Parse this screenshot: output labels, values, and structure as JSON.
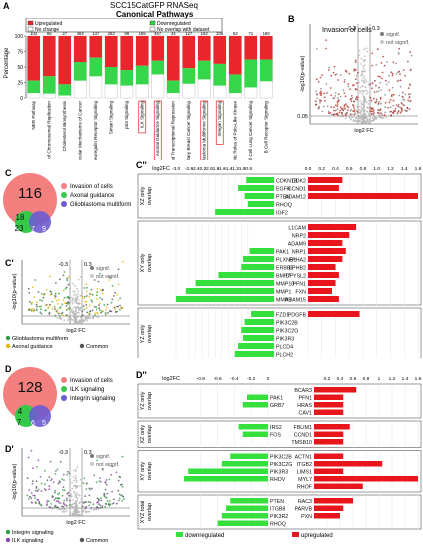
{
  "panel_letters": {
    "A": "A",
    "B": "B",
    "C": "C",
    "C1": "C'",
    "C2": "C''",
    "D": "D",
    "D1": "D'",
    "D2": "D''"
  },
  "panelA": {
    "title_line1": "SCC15CatGFP RNASeq",
    "title_line2": "Canonical Pathways",
    "ylabel": "Percentage",
    "legend": [
      "Upregulated",
      "Downregulated",
      "No change",
      "No overlap with dataset"
    ],
    "colors": {
      "up": "#e8262b",
      "down": "#35d64a",
      "nochange": "#ffffff",
      "nooverlap": "#ffffff"
    }
  },
  "panelB": {
    "title": "Invasion of cells",
    "ylabel": "-log10(p-value)",
    "xlabel": "log2 FC",
    "neg_thr": "-0.3",
    "pos_thr": "0.3",
    "pthr": "0.05",
    "legend_sig": "signif.",
    "legend_notsig": "not signif."
  },
  "panelC": {
    "big": "116",
    "n2": "18",
    "n3": "23",
    "n4": "7",
    "n5": "9",
    "legend": [
      "Invasion of cells",
      "Axonal guidance",
      "Glioblastoma multiform"
    ]
  },
  "panelC1": {
    "ylabel": "-log10(p-value)",
    "xlabel": "log2 FC",
    "neg_thr": "-0.3",
    "pos_thr": "0.3",
    "legend_sig": "signif.",
    "legend_notsig": "not signif.",
    "legend_bottom": [
      "Glioblastoma multiform",
      "Axonal guidance",
      "Common"
    ]
  },
  "panelD": {
    "big": "128",
    "n2": "4",
    "n3": "7",
    "n4": "6",
    "n5": "5",
    "legend": [
      "Invasion of cells",
      "ILK signaling",
      "Integrin signaling"
    ]
  },
  "panelD1": {
    "ylabel": "-log10(p-value)",
    "xlabel": "log2 FC",
    "neg_thr": "-0.3",
    "pos_thr": "0.3",
    "legend_sig": "signif.",
    "legend_notsig": "not signif.",
    "legend_bottom": [
      "Integrin signaling",
      "ILK signaling",
      "Common"
    ]
  },
  "panelC2_meta": {
    "axis_title": "log2FC",
    "down_label": "downregulated",
    "up_label": "upregulated",
    "groups": [
      "XZ only\noverlap",
      "XY only\noverlap",
      "YZ only\noverlap",
      "XYZ total\noverlap"
    ]
  },
  "panelD2_meta": {
    "axis_title": "log2FC",
    "down_label": "downregulated",
    "up_label": "upregulated",
    "groups": [
      "YZ only\noverlap",
      "XZ only\noverlap",
      "XY only\noverlap",
      "XYZ total\noverlap"
    ]
  },
  "chart_data": [
    {
      "type": "bar",
      "title": "SCC15CatGFP RNASeq Canonical Pathways",
      "ylabel": "Percentage",
      "ylim": [
        0,
        100
      ],
      "yticks": [
        0,
        25,
        50,
        75,
        100
      ],
      "categories": [
        "NER Pathway",
        "Cell Cycle Control of Chromosomal Replication",
        "Cholesterol Biosynthesis",
        "Molecular Mechanisms of Cancer",
        "Neuregulin Receptor Signaling",
        "Sirtuin Signaling",
        "p53 Signaling",
        "ILK Signaling",
        "Axonal Guidance Signaling",
        "DNA Methylation and Transcriptional Repression",
        "Hereditary Breast Cancer Signaling",
        "Glioblastoma Multiforme Signaling",
        "Integrin Signaling",
        "Mitotic Roles of Polo-Like Kinase",
        "Small Cell Lung Cancer Signaling",
        "B Cell Receptor Signaling"
      ],
      "totals": [
        "102",
        "66",
        "27",
        "384",
        "137",
        "283",
        "98",
        "185",
        "467",
        "34",
        "127",
        "162",
        "205",
        "63",
        "71",
        "180"
      ],
      "highlighted": [
        "ILK Signaling",
        "Axonal Guidance Signaling",
        "Glioblastoma Multiforme Signaling",
        "Integrin Signaling"
      ],
      "series": [
        {
          "name": "Upregulated",
          "values": [
            72,
            65,
            78,
            42,
            35,
            50,
            55,
            48,
            40,
            72,
            52,
            40,
            45,
            62,
            38,
            38
          ]
        },
        {
          "name": "Downregulated",
          "values": [
            20,
            28,
            18,
            30,
            30,
            28,
            25,
            30,
            22,
            20,
            25,
            30,
            35,
            30,
            45,
            35
          ]
        }
      ]
    },
    {
      "type": "bar",
      "title": "C''",
      "xlabel": "log2FC",
      "xlim": [
        -3.4,
        1.7
      ],
      "xticks": [
        "-3.0",
        "-2.6",
        "-2.4",
        "-2.2",
        "-2.0",
        "-1.8",
        "-1.6",
        "-1.4",
        "-1.2",
        "-1.0",
        "-0.8",
        "0.0",
        "0.2",
        "0.4",
        "0.6",
        "0.8",
        "1.0",
        "1.2",
        "1.4",
        "1.6"
      ],
      "groups": [
        {
          "name": "XZ only overlap",
          "genes": [
            {
              "gene": "CDKN1B",
              "value": -0.85
            },
            {
              "gene": "EGFR",
              "value": -1.1
            },
            {
              "gene": "PTEN",
              "value": -0.9
            },
            {
              "gene": "RHOQ",
              "value": -0.8
            },
            {
              "gene": "IGF2",
              "value": -1.8
            },
            {
              "gene": "CDK2",
              "value": 0.5
            },
            {
              "gene": "CCND1",
              "value": 0.45
            },
            {
              "gene": "ADAM12",
              "value": 1.6
            }
          ]
        },
        {
          "name": "XY only overlap",
          "genes": [
            {
              "gene": "PAK1",
              "value": -0.75
            },
            {
              "gene": "PLXNB1",
              "value": -0.95
            },
            {
              "gene": "ERBB2",
              "value": -1.0
            },
            {
              "gene": "BMP7",
              "value": -1.7
            },
            {
              "gene": "MMP10",
              "value": -2.4
            },
            {
              "gene": "MMP1",
              "value": -2.7
            },
            {
              "gene": "MMP3",
              "value": -3.0
            },
            {
              "gene": "L1CAM",
              "value": 0.7
            },
            {
              "gene": "NRP2",
              "value": 0.6
            },
            {
              "gene": "ADAM9",
              "value": 0.5
            },
            {
              "gene": "NRP1",
              "value": 0.55
            },
            {
              "gene": "EPHA2",
              "value": 0.5
            },
            {
              "gene": "EPHB2",
              "value": 0.4
            },
            {
              "gene": "DPYSL2",
              "value": 0.45
            },
            {
              "gene": "PFN1",
              "value": 0.4
            },
            {
              "gene": "FXN",
              "value": 0.35
            },
            {
              "gene": "ADAM15",
              "value": 0.45
            }
          ]
        },
        {
          "name": "YZ only overlap",
          "genes": [
            {
              "gene": "FZD1",
              "value": -0.7
            },
            {
              "gene": "PIK3C2B",
              "value": -0.9
            },
            {
              "gene": "PIK3C2G",
              "value": -1.0
            },
            {
              "gene": "PIK3R3",
              "value": -0.95
            },
            {
              "gene": "PLCD4",
              "value": -1.1
            },
            {
              "gene": "PLCH2",
              "value": -1.2
            },
            {
              "gene": "PDGFB",
              "value": 0.75
            }
          ]
        },
        {
          "name": "XYZ total overlap",
          "genes": [
            {
              "gene": "PIK3R2",
              "value": -0.5
            },
            {
              "gene": "PLCD1",
              "value": -0.6
            },
            {
              "gene": "RAC3",
              "value": 0.65
            },
            {
              "gene": "HRAS",
              "value": 0.45
            }
          ]
        }
      ]
    },
    {
      "type": "bar",
      "title": "D''",
      "xlabel": "log2FC",
      "xlim": [
        -1.05,
        1.75
      ],
      "xticks": [
        "-0.8",
        "-0.6",
        "-0.4",
        "-0.2",
        "0",
        "0.2",
        "0.4",
        "0.6",
        "0.8",
        "1",
        "1.2",
        "1.4",
        "1.6"
      ],
      "groups": [
        {
          "name": "YZ only overlap",
          "genes": [
            {
              "gene": "PAK1",
              "value": -0.25
            },
            {
              "gene": "GRB7",
              "value": -0.3
            },
            {
              "gene": "BCAR3",
              "value": 0.65
            },
            {
              "gene": "PFN1",
              "value": 0.45
            },
            {
              "gene": "HRAS",
              "value": 0.45
            },
            {
              "gene": "CAV1",
              "value": 0.45
            }
          ]
        },
        {
          "name": "XZ only overlap",
          "genes": [
            {
              "gene": "IRS2",
              "value": -0.35
            },
            {
              "gene": "FOS",
              "value": -0.3
            },
            {
              "gene": "FBLIM1",
              "value": 0.55
            },
            {
              "gene": "CCND1",
              "value": 0.45
            },
            {
              "gene": "TMSB10",
              "value": 0.45
            }
          ]
        },
        {
          "name": "XY only overlap",
          "genes": [
            {
              "gene": "PIK3C2B",
              "value": -0.45
            },
            {
              "gene": "PIK3C2G",
              "value": -0.55
            },
            {
              "gene": "PIK3R3",
              "value": -0.95
            },
            {
              "gene": "RHOV",
              "value": -1.0
            },
            {
              "gene": "ACTN1",
              "value": 0.45
            },
            {
              "gene": "ITGB2",
              "value": 1.05
            },
            {
              "gene": "LIMS1",
              "value": 0.45
            },
            {
              "gene": "MYL7",
              "value": 1.6
            },
            {
              "gene": "RHOF",
              "value": 0.75
            }
          ]
        },
        {
          "name": "XYZ total overlap",
          "genes": [
            {
              "gene": "PTEN",
              "value": -0.45
            },
            {
              "gene": "ITGB8",
              "value": -0.5
            },
            {
              "gene": "PIK3R2",
              "value": -0.55
            },
            {
              "gene": "RHOQ",
              "value": -0.6
            },
            {
              "gene": "RAC3",
              "value": 0.6
            },
            {
              "gene": "PARVB",
              "value": 0.45
            },
            {
              "gene": "PXN",
              "value": 0.4
            }
          ]
        }
      ]
    }
  ]
}
